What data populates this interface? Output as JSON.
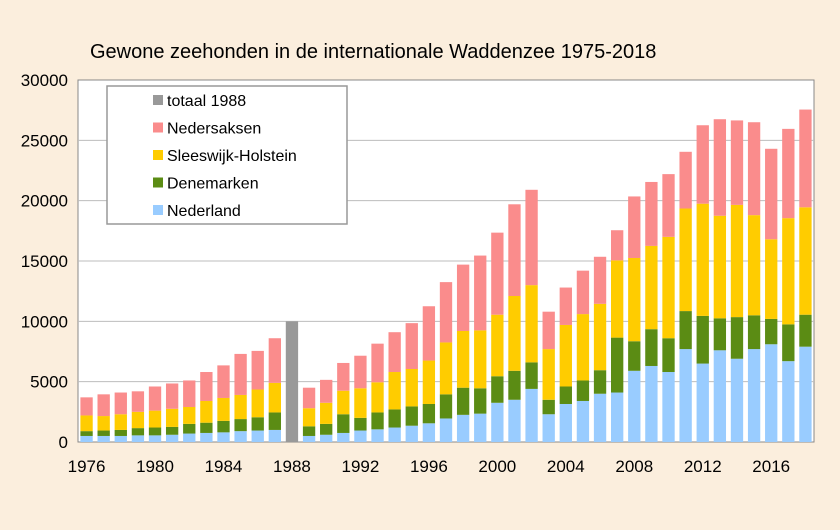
{
  "chart_data": {
    "type": "bar",
    "stacked": true,
    "title": "Gewone zeehonden in de internationale Waddenzee 1975-2018",
    "xlabel": "",
    "ylabel": "",
    "ylim": [
      0,
      30000
    ],
    "yticks": [
      0,
      5000,
      10000,
      15000,
      20000,
      25000,
      30000
    ],
    "xticks": [
      1976,
      1980,
      1984,
      1988,
      1992,
      1996,
      2000,
      2004,
      2008,
      2012,
      2016
    ],
    "grid": true,
    "legend_position": "top-left",
    "legend": [
      "totaal 1988",
      "Nedersaksen",
      "Sleeswijk-Holstein",
      "Denemarken",
      "Nederland"
    ],
    "categories": [
      1976,
      1977,
      1978,
      1979,
      1980,
      1981,
      1982,
      1983,
      1984,
      1985,
      1986,
      1987,
      1988,
      1989,
      1990,
      1991,
      1992,
      1993,
      1994,
      1995,
      1996,
      1997,
      1998,
      1999,
      2000,
      2001,
      2002,
      2003,
      2004,
      2005,
      2006,
      2007,
      2008,
      2009,
      2010,
      2011,
      2012,
      2013,
      2014,
      2015,
      2016,
      2017,
      2018
    ],
    "series": [
      {
        "name": "Nederland",
        "color": "#99ccff",
        "values": [
          500,
          500,
          500,
          550,
          550,
          600,
          700,
          750,
          800,
          900,
          950,
          1000,
          0,
          500,
          600,
          750,
          950,
          1050,
          1200,
          1350,
          1550,
          1950,
          2250,
          2350,
          3250,
          3500,
          4400,
          2300,
          3150,
          3400,
          4000,
          4100,
          5900,
          6300,
          5800,
          7700,
          6500,
          7600,
          6900,
          7700,
          8100,
          6700,
          7900
        ]
      },
      {
        "name": "Denemarken",
        "color": "#5b8c14",
        "values": [
          400,
          450,
          500,
          600,
          650,
          650,
          800,
          850,
          950,
          1000,
          1100,
          1450,
          0,
          800,
          900,
          1550,
          1050,
          1400,
          1500,
          1600,
          1600,
          2000,
          2250,
          2100,
          2200,
          2400,
          2200,
          1200,
          1450,
          1700,
          1950,
          4550,
          2450,
          3050,
          2800,
          3150,
          3950,
          2650,
          3450,
          2800,
          2100,
          3050,
          2650
        ]
      },
      {
        "name": "Sleeswijk-Holstein",
        "color": "#ffcc00",
        "values": [
          1300,
          1200,
          1300,
          1350,
          1400,
          1500,
          1400,
          1800,
          1900,
          2000,
          2300,
          2450,
          0,
          1500,
          1750,
          1950,
          2450,
          2500,
          3100,
          3100,
          3600,
          4300,
          4700,
          4800,
          5100,
          6200,
          6400,
          4200,
          5100,
          5500,
          5500,
          6400,
          6900,
          6900,
          8400,
          8500,
          9300,
          8500,
          9300,
          8300,
          6600,
          8800,
          8900
        ]
      },
      {
        "name": "Nedersaksen",
        "color": "#fa8c8c",
        "values": [
          1500,
          1800,
          1800,
          1700,
          2000,
          2100,
          2200,
          2400,
          2700,
          3400,
          3200,
          3700,
          0,
          1700,
          1900,
          2300,
          2700,
          3200,
          3300,
          3800,
          4500,
          5000,
          5500,
          6200,
          6800,
          7600,
          7900,
          3100,
          3100,
          3600,
          3900,
          2500,
          5100,
          5300,
          5200,
          4700,
          6500,
          8000,
          7000,
          7700,
          7500,
          7400,
          8100
        ]
      },
      {
        "name": "totaal 1988",
        "color": "#999999",
        "values": [
          0,
          0,
          0,
          0,
          0,
          0,
          0,
          0,
          0,
          0,
          0,
          0,
          10000,
          0,
          0,
          0,
          0,
          0,
          0,
          0,
          0,
          0,
          0,
          0,
          0,
          0,
          0,
          0,
          0,
          0,
          0,
          0,
          0,
          0,
          0,
          0,
          0,
          0,
          0,
          0,
          0,
          0,
          0
        ]
      }
    ]
  }
}
